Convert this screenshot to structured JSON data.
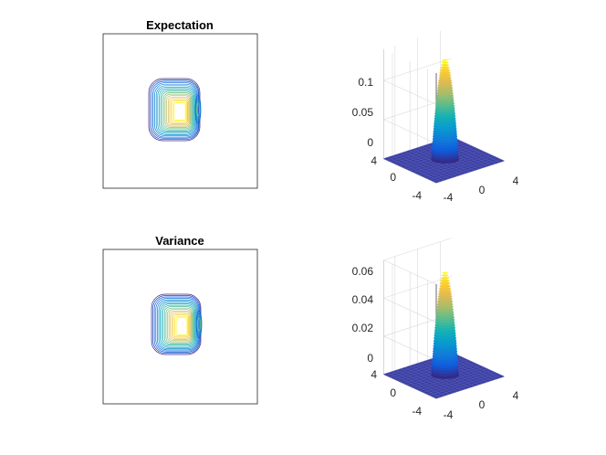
{
  "chart_data": [
    {
      "type": "contour",
      "title": "Expectation",
      "xlabel": "",
      "ylabel": "",
      "colormap": "parula",
      "levels": 18,
      "peak": 0.13
    },
    {
      "type": "surface",
      "title": "",
      "z_ticks": [
        "0",
        "0.05",
        "0.1"
      ],
      "zlim": [
        0,
        0.14
      ],
      "y_ticks": [
        "4",
        "0",
        "-4"
      ],
      "x_ticks": [
        "-4",
        "0",
        "4"
      ],
      "xlim": [
        -6,
        6
      ],
      "ylim": [
        -6,
        6
      ],
      "peak": 0.13,
      "colormap": "parula"
    },
    {
      "type": "contour",
      "title": "Variance",
      "xlabel": "",
      "ylabel": "",
      "colormap": "parula",
      "levels": 18,
      "peak": 0.055
    },
    {
      "type": "surface",
      "title": "",
      "z_ticks": [
        "0",
        "0.02",
        "0.04",
        "0.06"
      ],
      "zlim": [
        0,
        0.06
      ],
      "y_ticks": [
        "4",
        "0",
        "-4"
      ],
      "x_ticks": [
        "-4",
        "0",
        "4"
      ],
      "xlim": [
        -6,
        6
      ],
      "ylim": [
        -6,
        6
      ],
      "peak": 0.055,
      "colormap": "parula"
    }
  ]
}
